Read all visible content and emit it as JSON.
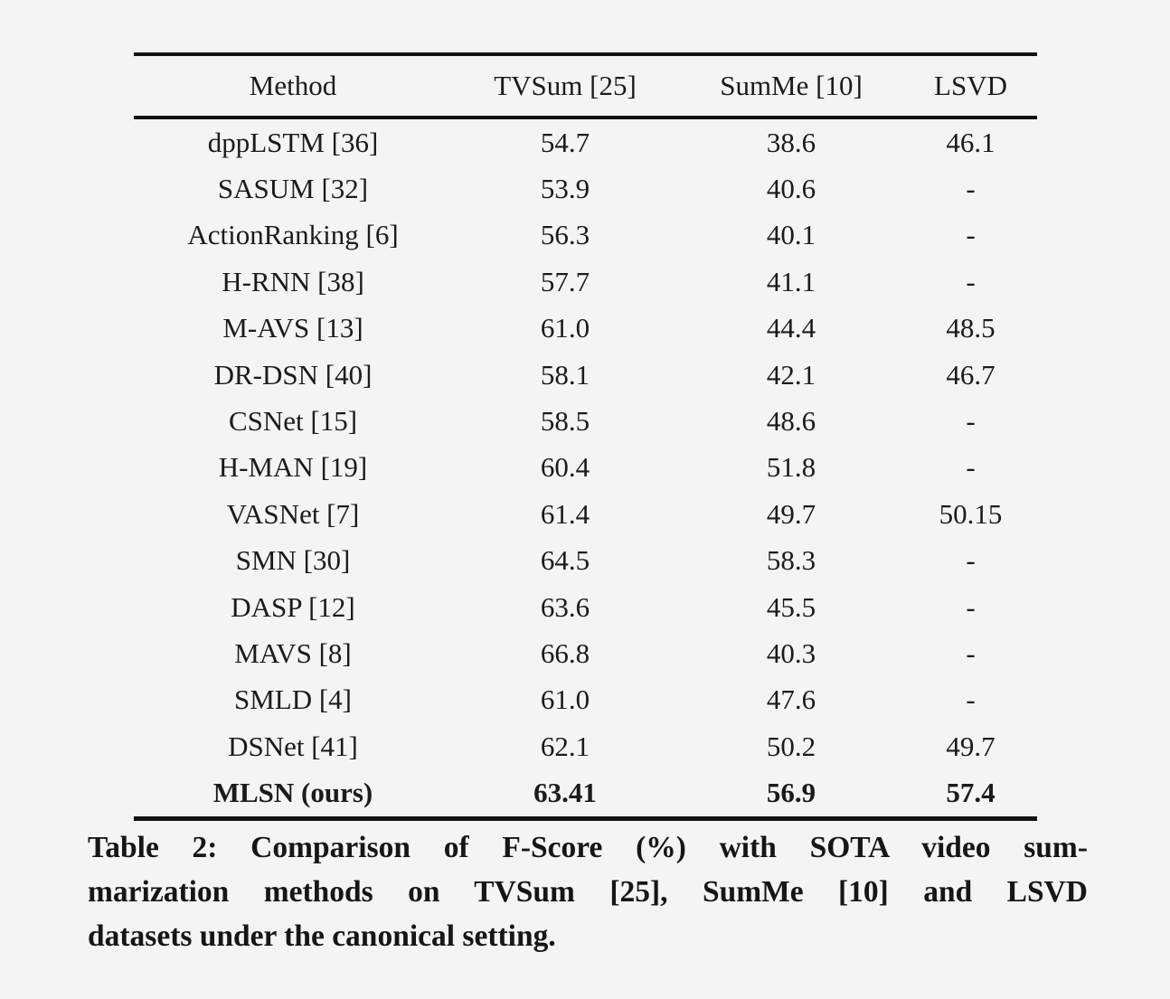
{
  "page": {
    "background_color": "#f5f4f5",
    "text_color": "#1b1b1b"
  },
  "table": {
    "columns": [
      "Method",
      "TVSum [25]",
      "SumMe [10]",
      "LSVD"
    ],
    "rows": [
      {
        "method": "dppLSTM [36]",
        "tvsum": "54.7",
        "summe": "38.6",
        "lsvd": "46.1",
        "bold": false
      },
      {
        "method": "SASUM [32]",
        "tvsum": "53.9",
        "summe": "40.6",
        "lsvd": "-",
        "bold": false
      },
      {
        "method": "ActionRanking [6]",
        "tvsum": "56.3",
        "summe": "40.1",
        "lsvd": "-",
        "bold": false
      },
      {
        "method": "H-RNN [38]",
        "tvsum": "57.7",
        "summe": "41.1",
        "lsvd": "-",
        "bold": false
      },
      {
        "method": "M-AVS [13]",
        "tvsum": "61.0",
        "summe": "44.4",
        "lsvd": "48.5",
        "bold": false
      },
      {
        "method": "DR-DSN [40]",
        "tvsum": "58.1",
        "summe": "42.1",
        "lsvd": "46.7",
        "bold": false
      },
      {
        "method": "CSNet [15]",
        "tvsum": "58.5",
        "summe": "48.6",
        "lsvd": "-",
        "bold": false
      },
      {
        "method": "H-MAN [19]",
        "tvsum": "60.4",
        "summe": "51.8",
        "lsvd": "-",
        "bold": false
      },
      {
        "method": "VASNet [7]",
        "tvsum": "61.4",
        "summe": "49.7",
        "lsvd": "50.15",
        "bold": false
      },
      {
        "method": "SMN [30]",
        "tvsum": "64.5",
        "summe": "58.3",
        "lsvd": "-",
        "bold": false
      },
      {
        "method": "DASP [12]",
        "tvsum": "63.6",
        "summe": "45.5",
        "lsvd": "-",
        "bold": false
      },
      {
        "method": "MAVS [8]",
        "tvsum": "66.8",
        "summe": "40.3",
        "lsvd": "-",
        "bold": false
      },
      {
        "method": "SMLD [4]",
        "tvsum": "61.0",
        "summe": "47.6",
        "lsvd": "-",
        "bold": false
      },
      {
        "method": "DSNet [41]",
        "tvsum": "62.1",
        "summe": "50.2",
        "lsvd": "49.7",
        "bold": false
      },
      {
        "method": "MLSN (ours)",
        "tvsum": "63.41",
        "summe": "56.9",
        "lsvd": "57.4",
        "bold": true
      }
    ]
  },
  "caption": {
    "lines": [
      "Table 2: Comparison of F-Score (%) with SOTA video sum-",
      "marization methods on TVSum [25], SumMe [10] and LSVD",
      "datasets under the canonical setting."
    ],
    "full_text": "Table 2: Comparison of F-Score (%) with SOTA video summarization methods on TVSum [25], SumMe [10] and LSVD datasets under the canonical setting."
  }
}
